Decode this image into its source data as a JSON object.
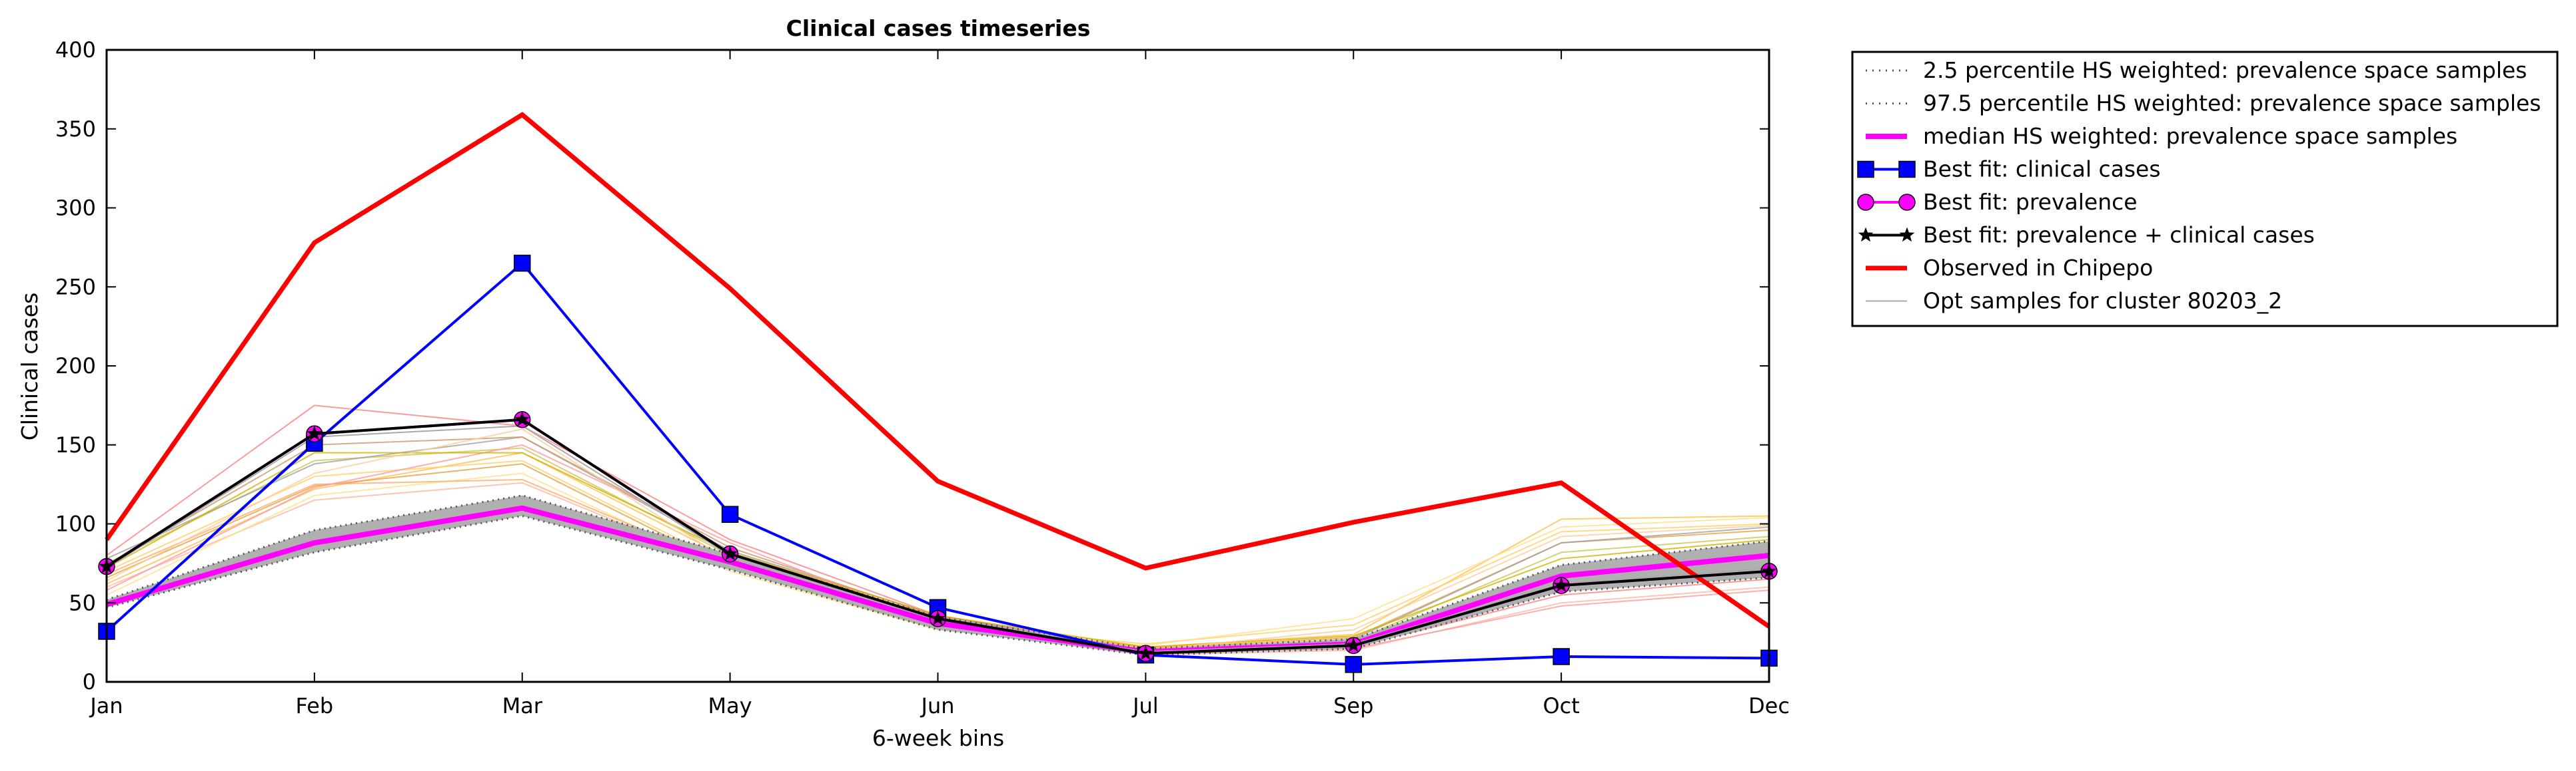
{
  "chart_data": {
    "type": "line",
    "title": "Clinical cases timeseries",
    "xlabel": "6-week bins",
    "ylabel": "Clinical cases",
    "categories": [
      "Jan",
      "Feb",
      "Mar",
      "May",
      "Jun",
      "Jul",
      "Sep",
      "Oct",
      "Dec"
    ],
    "ylim": [
      0,
      400
    ],
    "yticks": [
      0,
      50,
      100,
      150,
      200,
      250,
      300,
      350,
      400
    ],
    "grid": false,
    "legend_position": "outside-right",
    "band": {
      "lower": [
        47,
        82,
        105,
        71,
        33,
        17,
        21,
        57,
        66
      ],
      "upper": [
        52,
        96,
        118,
        81,
        41,
        21,
        27,
        74,
        89
      ],
      "color": "#b0b0b0"
    },
    "series": [
      {
        "name": "2.5 percentile HS weighted: prevalence space samples",
        "style": "dotted",
        "color": "#555555",
        "values": [
          47,
          82,
          105,
          71,
          33,
          17,
          21,
          57,
          66
        ]
      },
      {
        "name": "97.5 percentile HS weighted: prevalence space samples",
        "style": "dotted",
        "color": "#555555",
        "values": [
          52,
          96,
          118,
          81,
          41,
          21,
          27,
          74,
          89
        ]
      },
      {
        "name": "median HS weighted: prevalence space samples",
        "style": "solid-thick",
        "color": "#ff00ff",
        "values": [
          49,
          88,
          110,
          76,
          37,
          19,
          24,
          67,
          80
        ]
      },
      {
        "name": "Best fit: clinical cases",
        "style": "square-marker",
        "color": "#0000ff",
        "values": [
          32,
          151,
          265,
          106,
          47,
          17,
          11,
          16,
          15
        ]
      },
      {
        "name": "Best fit: prevalence",
        "style": "circle-marker",
        "color": "#ff00ff",
        "values": [
          73,
          157,
          166,
          81,
          40,
          18,
          23,
          61,
          70
        ]
      },
      {
        "name": "Best fit: prevalence + clinical cases",
        "style": "star-marker",
        "color": "#000000",
        "values": [
          73,
          157,
          166,
          81,
          40,
          18,
          23,
          61,
          70
        ]
      },
      {
        "name": "Observed in Chipepo",
        "style": "solid-red",
        "color": "#ff0000",
        "values": [
          90,
          278,
          359,
          249,
          127,
          72,
          101,
          126,
          35
        ]
      },
      {
        "name": "Opt samples for cluster 80203_2",
        "style": "thin",
        "color": "#aaaaaa",
        "values": [
          72,
          155,
          162,
          80,
          40,
          19,
          24,
          62,
          72
        ]
      }
    ],
    "opt_samples": [
      {
        "color": "#ff8080",
        "values": [
          80,
          175,
          162,
          90,
          42,
          20,
          22,
          55,
          65
        ]
      },
      {
        "color": "#ffc04d",
        "values": [
          62,
          122,
          145,
          78,
          38,
          22,
          30,
          103,
          105
        ]
      },
      {
        "color": "#ffd166",
        "values": [
          70,
          130,
          140,
          74,
          36,
          24,
          36,
          95,
          100
        ]
      },
      {
        "color": "#e6a040",
        "values": [
          66,
          124,
          138,
          72,
          35,
          21,
          28,
          88,
          96
        ]
      },
      {
        "color": "#c8c850",
        "values": [
          75,
          140,
          148,
          80,
          40,
          20,
          26,
          82,
          92
        ]
      },
      {
        "color": "#a0a0a0",
        "values": [
          78,
          138,
          155,
          83,
          42,
          19,
          27,
          88,
          98
        ]
      },
      {
        "color": "#ffb6a0",
        "values": [
          60,
          115,
          126,
          72,
          34,
          17,
          20,
          50,
          60
        ]
      },
      {
        "color": "#ffe08a",
        "values": [
          55,
          118,
          132,
          70,
          33,
          23,
          40,
          98,
          104
        ]
      },
      {
        "color": "#ffaa66",
        "values": [
          68,
          125,
          128,
          73,
          36,
          22,
          25,
          70,
          84
        ]
      },
      {
        "color": "#cc9966",
        "values": [
          74,
          150,
          155,
          85,
          41,
          20,
          25,
          60,
          68
        ]
      },
      {
        "color": "#ff9999",
        "values": [
          58,
          123,
          150,
          88,
          37,
          18,
          21,
          48,
          58
        ]
      },
      {
        "color": "#d4b000",
        "values": [
          72,
          145,
          145,
          82,
          42,
          22,
          29,
          78,
          90
        ]
      },
      {
        "color": "#ffcc99",
        "values": [
          64,
          132,
          160,
          76,
          38,
          20,
          33,
          92,
          99
        ]
      }
    ]
  }
}
